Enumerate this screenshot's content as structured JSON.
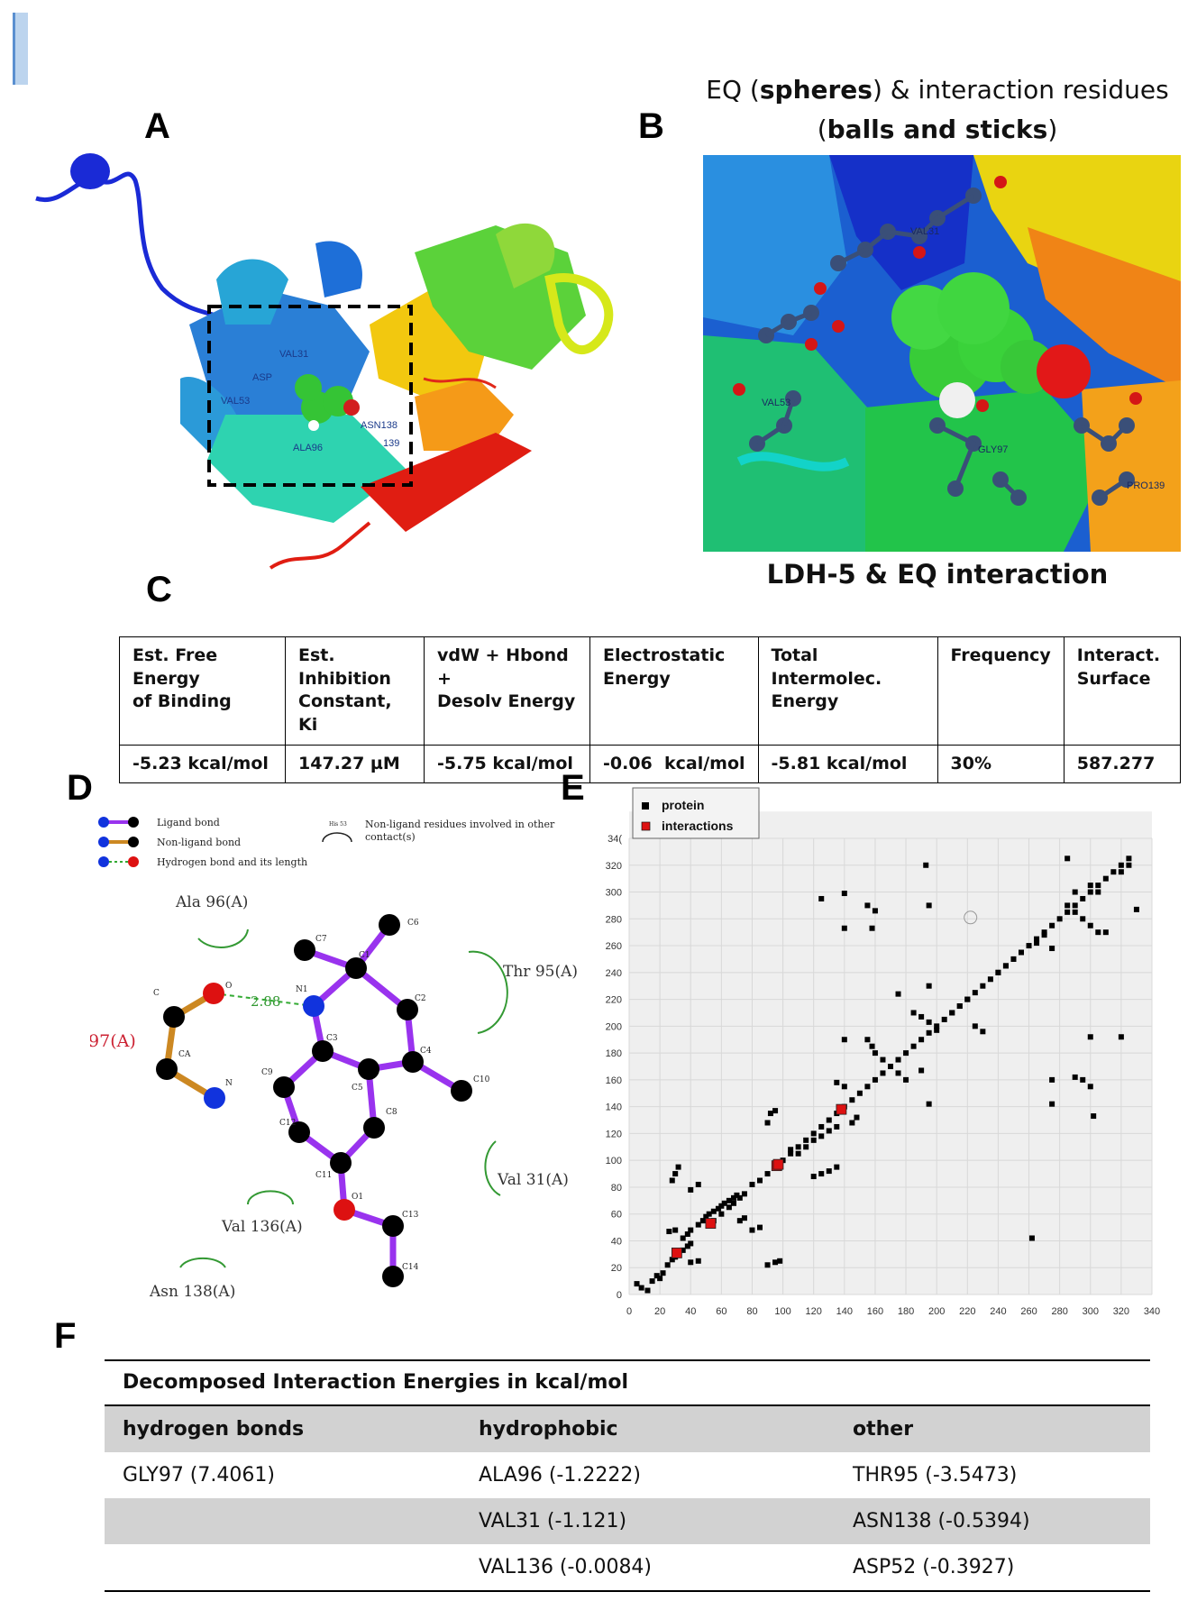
{
  "panel_letters": {
    "a": "A",
    "b": "B",
    "c": "C",
    "d": "D",
    "e": "E",
    "f": "F"
  },
  "panel_b": {
    "caption_prefix": "EQ (",
    "caption_bold1": "spheres",
    "caption_mid": ") & interaction residues",
    "caption_paren_open": "(",
    "caption_bold2": "balls and sticks",
    "caption_paren_close": ")",
    "subtitle": "LDH-5 & EQ interaction",
    "residue_labels": [
      "VAL31",
      "GLY97",
      "PRO139",
      "VAL53"
    ]
  },
  "panel_a": {
    "residue_labels": [
      "VAL31",
      "ASP",
      "VAL53",
      "ALA96",
      "ASN138",
      "139"
    ]
  },
  "panel_c": {
    "headers": [
      "Est. Free Energy\nof Binding",
      "Est. Inhibition\nConstant, Ki",
      "vdW + Hbond +\nDesolv Energy",
      "Electrostatic\nEnergy",
      "Total Intermolec.\nEnergy",
      "Frequency",
      "Interact.\nSurface"
    ],
    "values": [
      "-5.23 kcal/mol",
      "147.27 µM",
      "-5.75 kcal/mol",
      "-0.06  kcal/mol",
      "-5.81 kcal/mol",
      "30%",
      "587.277"
    ]
  },
  "panel_d": {
    "legend": {
      "ligand_bond": "Ligand bond",
      "non_ligand_bond": "Non-ligand bond",
      "hbond": "Hydrogen bond and its length",
      "his_label": "His 53",
      "non_ligand_residues": "Non-ligand residues involved in other",
      "contacts": "contact(s)"
    },
    "residues": {
      "ala96": "Ala 96(A)",
      "thr95": "Thr 95(A)",
      "gly97": "Gly 97(A)",
      "val31": "Val 31(A)",
      "val136": "Val 136(A)",
      "asn138": "Asn 138(A)"
    },
    "hbond_length": "2.88",
    "atom_labels": {
      "c7": "C7",
      "c1": "C1",
      "c6": "C6",
      "c2": "C2",
      "n1": "N1",
      "o": "O",
      "c": "C",
      "ca": "CA",
      "n": "N",
      "c4": "C4",
      "c10": "C10",
      "c3": "C3",
      "c9": "C9",
      "c5": "C5",
      "c8": "C8",
      "c12": "C12",
      "c11": "C11",
      "o1": "O1",
      "c13": "C13",
      "c14": "C14"
    },
    "colors": {
      "ligand_bond": "#9933ee",
      "non_ligand_bond": "#cc8822",
      "hbond": "#33aa33",
      "atom_c": "#000000",
      "atom_n": "#1133dd",
      "atom_o": "#dd1111"
    }
  },
  "chart_data": {
    "type": "scatter",
    "legend": [
      "protein",
      "interactions"
    ],
    "legend_position": "top-left",
    "grid": true,
    "xlim": [
      0,
      340
    ],
    "ylim": [
      0,
      340
    ],
    "x_ticks": [
      0,
      20,
      40,
      60,
      80,
      100,
      120,
      140,
      160,
      180,
      200,
      220,
      240,
      260,
      280,
      300,
      320,
      340
    ],
    "y_ticks": [
      0,
      20,
      40,
      60,
      80,
      100,
      120,
      140,
      160,
      180,
      200,
      220,
      240,
      260,
      280,
      300,
      320,
      "34("
    ],
    "series": [
      {
        "name": "protein",
        "color": "#000000",
        "points": [
          [
            5,
            8
          ],
          [
            8,
            5
          ],
          [
            12,
            3
          ],
          [
            15,
            10
          ],
          [
            18,
            14
          ],
          [
            20,
            12
          ],
          [
            22,
            16
          ],
          [
            25,
            22
          ],
          [
            28,
            26
          ],
          [
            30,
            28
          ],
          [
            32,
            30
          ],
          [
            35,
            33
          ],
          [
            38,
            36
          ],
          [
            40,
            38
          ],
          [
            28,
            85
          ],
          [
            30,
            90
          ],
          [
            32,
            95
          ],
          [
            26,
            47
          ],
          [
            30,
            48
          ],
          [
            35,
            42
          ],
          [
            38,
            45
          ],
          [
            40,
            48
          ],
          [
            45,
            52
          ],
          [
            48,
            55
          ],
          [
            50,
            58
          ],
          [
            52,
            60
          ],
          [
            55,
            62
          ],
          [
            58,
            64
          ],
          [
            60,
            66
          ],
          [
            62,
            68
          ],
          [
            65,
            70
          ],
          [
            68,
            72
          ],
          [
            70,
            74
          ],
          [
            40,
            24
          ],
          [
            45,
            25
          ],
          [
            40,
            78
          ],
          [
            45,
            82
          ],
          [
            55,
            55
          ],
          [
            60,
            60
          ],
          [
            65,
            65
          ],
          [
            68,
            68
          ],
          [
            72,
            72
          ],
          [
            75,
            75
          ],
          [
            80,
            82
          ],
          [
            85,
            85
          ],
          [
            90,
            90
          ],
          [
            95,
            95
          ],
          [
            100,
            100
          ],
          [
            105,
            105
          ],
          [
            110,
            110
          ],
          [
            115,
            115
          ],
          [
            120,
            120
          ],
          [
            125,
            125
          ],
          [
            130,
            130
          ],
          [
            135,
            135
          ],
          [
            140,
            140
          ],
          [
            145,
            145
          ],
          [
            150,
            150
          ],
          [
            155,
            155
          ],
          [
            160,
            160
          ],
          [
            165,
            165
          ],
          [
            170,
            170
          ],
          [
            175,
            175
          ],
          [
            180,
            180
          ],
          [
            185,
            185
          ],
          [
            190,
            190
          ],
          [
            195,
            195
          ],
          [
            200,
            200
          ],
          [
            205,
            205
          ],
          [
            210,
            210
          ],
          [
            215,
            215
          ],
          [
            220,
            220
          ],
          [
            225,
            225
          ],
          [
            230,
            230
          ],
          [
            235,
            235
          ],
          [
            240,
            240
          ],
          [
            245,
            245
          ],
          [
            250,
            250
          ],
          [
            255,
            255
          ],
          [
            260,
            260
          ],
          [
            265,
            265
          ],
          [
            270,
            270
          ],
          [
            275,
            275
          ],
          [
            280,
            280
          ],
          [
            285,
            285
          ],
          [
            290,
            290
          ],
          [
            295,
            295
          ],
          [
            300,
            300
          ],
          [
            305,
            305
          ],
          [
            310,
            310
          ],
          [
            315,
            315
          ],
          [
            320,
            320
          ],
          [
            325,
            325
          ],
          [
            105,
            108
          ],
          [
            110,
            105
          ],
          [
            115,
            110
          ],
          [
            120,
            115
          ],
          [
            125,
            118
          ],
          [
            130,
            122
          ],
          [
            135,
            125
          ],
          [
            90,
            128
          ],
          [
            92,
            135
          ],
          [
            95,
            137
          ],
          [
            120,
            88
          ],
          [
            125,
            90
          ],
          [
            130,
            92
          ],
          [
            135,
            95
          ],
          [
            90,
            22
          ],
          [
            95,
            24
          ],
          [
            98,
            25
          ],
          [
            85,
            50
          ],
          [
            80,
            48
          ],
          [
            72,
            55
          ],
          [
            75,
            57
          ],
          [
            140,
            155
          ],
          [
            135,
            158
          ],
          [
            140,
            190
          ],
          [
            145,
            128
          ],
          [
            148,
            132
          ],
          [
            155,
            190
          ],
          [
            158,
            185
          ],
          [
            160,
            180
          ],
          [
            165,
            175
          ],
          [
            170,
            170
          ],
          [
            175,
            165
          ],
          [
            180,
            160
          ],
          [
            125,
            295
          ],
          [
            140,
            273
          ],
          [
            140,
            299
          ],
          [
            155,
            290
          ],
          [
            158,
            273
          ],
          [
            160,
            286
          ],
          [
            175,
            224
          ],
          [
            185,
            210
          ],
          [
            190,
            207
          ],
          [
            195,
            203
          ],
          [
            200,
            197
          ],
          [
            193,
            320
          ],
          [
            195,
            230
          ],
          [
            195,
            290
          ],
          [
            190,
            167
          ],
          [
            195,
            142
          ],
          [
            210,
            210
          ],
          [
            215,
            215
          ],
          [
            220,
            220
          ],
          [
            225,
            200
          ],
          [
            230,
            196
          ],
          [
            240,
            240
          ],
          [
            245,
            245
          ],
          [
            250,
            250
          ],
          [
            262,
            42
          ],
          [
            265,
            262
          ],
          [
            270,
            268
          ],
          [
            275,
            258
          ],
          [
            275,
            142
          ],
          [
            275,
            160
          ],
          [
            285,
            290
          ],
          [
            290,
            285
          ],
          [
            295,
            280
          ],
          [
            300,
            275
          ],
          [
            305,
            270
          ],
          [
            290,
            300
          ],
          [
            285,
            325
          ],
          [
            300,
            305
          ],
          [
            305,
            300
          ],
          [
            290,
            162
          ],
          [
            295,
            160
          ],
          [
            300,
            155
          ],
          [
            302,
            133
          ],
          [
            310,
            270
          ],
          [
            300,
            192
          ],
          [
            320,
            192
          ],
          [
            320,
            315
          ],
          [
            325,
            320
          ],
          [
            330,
            287
          ]
        ]
      },
      {
        "name": "interactions",
        "color": "#dd1111",
        "points": [
          [
            31,
            31
          ],
          [
            53,
            53
          ],
          [
            96,
            96
          ],
          [
            97,
            97
          ],
          [
            138,
            138
          ]
        ]
      }
    ]
  },
  "panel_f": {
    "title": "Decomposed Interaction Energies in kcal/mol",
    "headers": [
      "hydrogen bonds",
      "hydrophobic",
      "other"
    ],
    "rows": [
      [
        "GLY97 (7.4061)",
        "ALA96 (-1.2222)",
        "THR95 (-3.5473)"
      ],
      [
        "",
        "VAL31 (-1.121)",
        "ASN138 (-0.5394)"
      ],
      [
        "",
        "VAL136 (-0.0084)",
        "ASP52 (-0.3927)"
      ]
    ]
  }
}
